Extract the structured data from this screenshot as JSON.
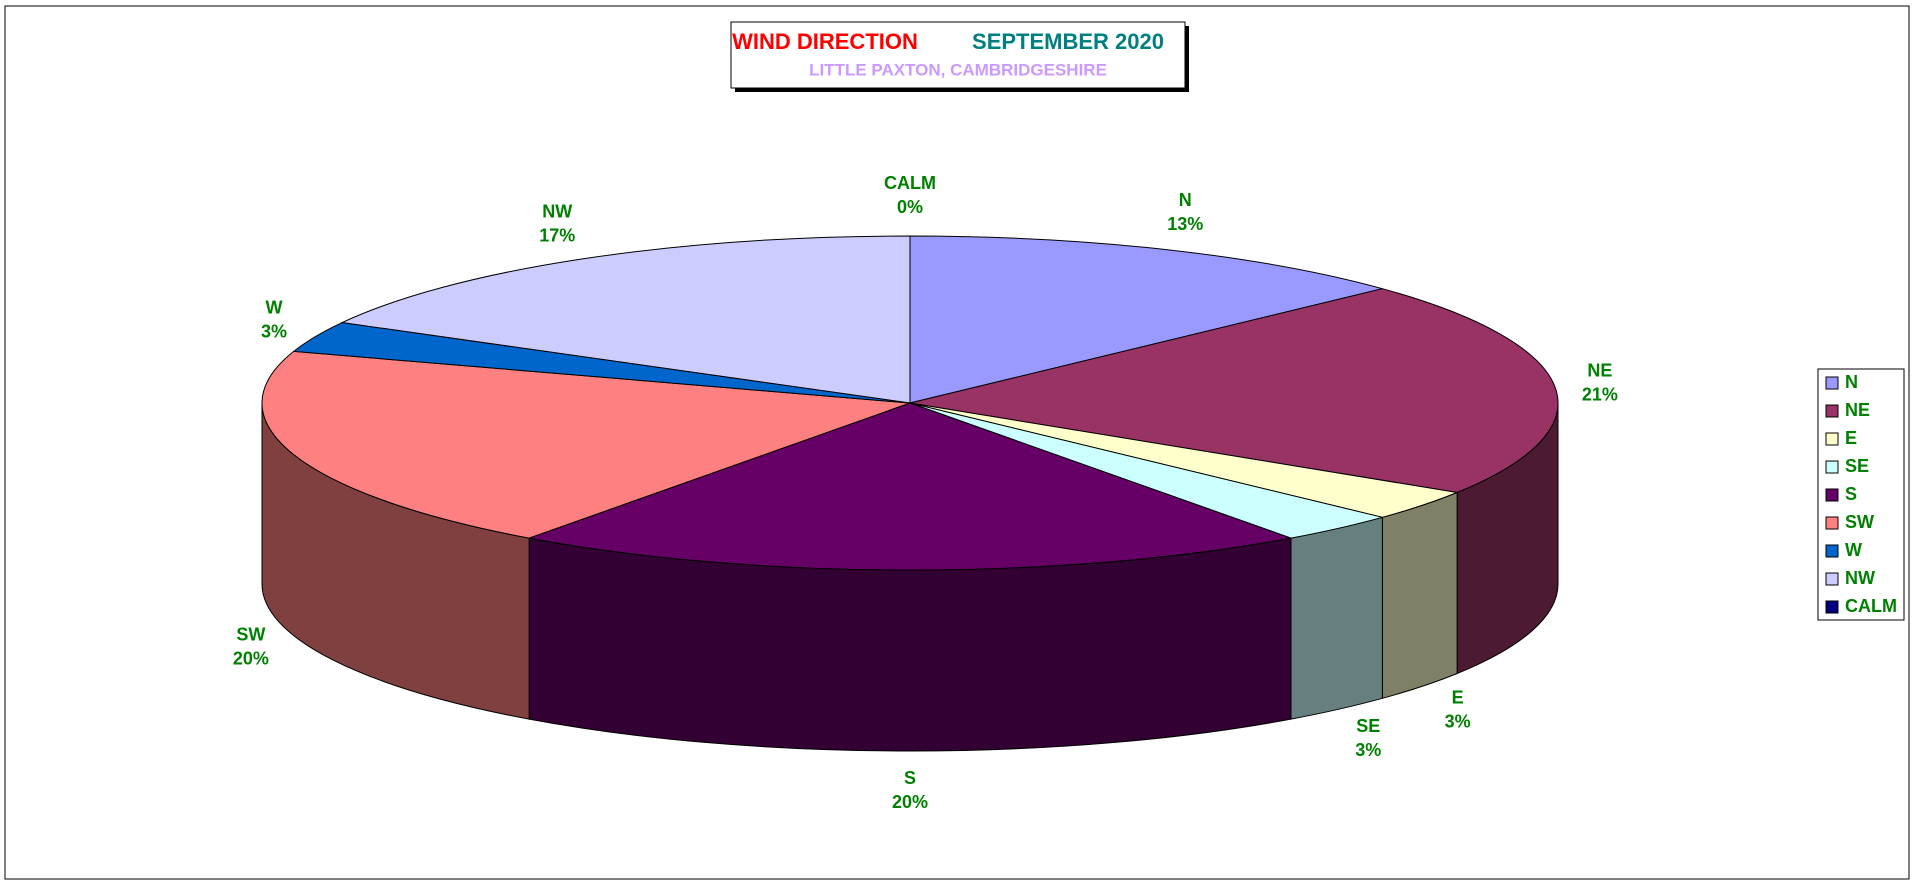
{
  "chart_data": {
    "type": "pie3d",
    "title": "WIND DIRECTION",
    "title_period": "SEPTEMBER 2020",
    "subtitle": "LITTLE PAXTON, CAMBRIDGESHIRE",
    "categories": [
      "N",
      "NE",
      "E",
      "SE",
      "S",
      "SW",
      "W",
      "NW",
      "CALM"
    ],
    "values": [
      13,
      21,
      3,
      3,
      20,
      20,
      3,
      17,
      0
    ],
    "value_labels": [
      "13%",
      "21%",
      "3%",
      "3%",
      "20%",
      "20%",
      "3%",
      "17%",
      "0%"
    ],
    "colors": [
      "#9999ff",
      "#993366",
      "#ffffcc",
      "#ccffff",
      "#660066",
      "#ff8080",
      "#0066cc",
      "#ccccff",
      "#000080"
    ],
    "legend": "right"
  }
}
